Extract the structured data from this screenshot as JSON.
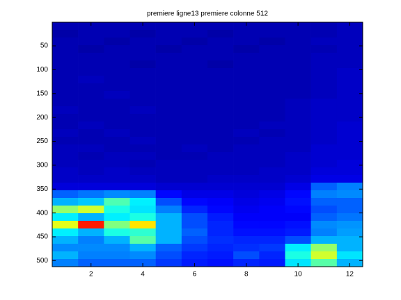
{
  "chart_data": {
    "type": "heatmap",
    "title": "premiere ligne13 premiere colonne 512",
    "colormap": "jet",
    "clim": [
      0,
      1
    ],
    "x": [
      1,
      2,
      3,
      4,
      5,
      6,
      7,
      8,
      9,
      10,
      11,
      12
    ],
    "ybins": [
      0.5,
      16.5,
      32.5,
      48.5,
      64.5,
      80.5,
      96.5,
      112.5,
      128.5,
      144.5,
      160.5,
      176.5,
      192.5,
      208.5,
      224.5,
      240.5,
      256.5,
      272.5,
      288.5,
      304.5,
      320.5,
      336.5,
      352.5,
      368.5,
      384.5,
      400.5,
      416.5,
      432.5,
      448.5,
      464.5,
      480.5,
      496.5,
      512.5
    ],
    "z": [
      [
        0.05,
        0.05,
        0.05,
        0.05,
        0.05,
        0.05,
        0.05,
        0.05,
        0.05,
        0.05,
        0.05,
        0.06
      ],
      [
        0.04,
        0.05,
        0.05,
        0.04,
        0.05,
        0.05,
        0.04,
        0.05,
        0.05,
        0.05,
        0.05,
        0.06
      ],
      [
        0.05,
        0.05,
        0.04,
        0.05,
        0.05,
        0.04,
        0.05,
        0.05,
        0.04,
        0.05,
        0.06,
        0.06
      ],
      [
        0.05,
        0.04,
        0.05,
        0.05,
        0.04,
        0.05,
        0.05,
        0.04,
        0.05,
        0.05,
        0.05,
        0.06
      ],
      [
        0.05,
        0.05,
        0.05,
        0.05,
        0.05,
        0.05,
        0.05,
        0.05,
        0.05,
        0.05,
        0.06,
        0.06
      ],
      [
        0.05,
        0.05,
        0.05,
        0.04,
        0.05,
        0.05,
        0.04,
        0.05,
        0.05,
        0.05,
        0.06,
        0.06
      ],
      [
        0.05,
        0.05,
        0.05,
        0.05,
        0.05,
        0.05,
        0.05,
        0.05,
        0.05,
        0.05,
        0.06,
        0.07
      ],
      [
        0.05,
        0.06,
        0.05,
        0.05,
        0.05,
        0.05,
        0.05,
        0.05,
        0.05,
        0.05,
        0.06,
        0.07
      ],
      [
        0.05,
        0.05,
        0.05,
        0.05,
        0.05,
        0.05,
        0.05,
        0.05,
        0.05,
        0.05,
        0.06,
        0.07
      ],
      [
        0.05,
        0.05,
        0.06,
        0.05,
        0.05,
        0.05,
        0.05,
        0.05,
        0.05,
        0.05,
        0.06,
        0.07
      ],
      [
        0.05,
        0.05,
        0.05,
        0.05,
        0.05,
        0.05,
        0.05,
        0.05,
        0.05,
        0.06,
        0.07,
        0.07
      ],
      [
        0.06,
        0.05,
        0.05,
        0.06,
        0.05,
        0.05,
        0.05,
        0.05,
        0.05,
        0.06,
        0.07,
        0.07
      ],
      [
        0.05,
        0.05,
        0.05,
        0.05,
        0.05,
        0.05,
        0.05,
        0.05,
        0.05,
        0.06,
        0.07,
        0.07
      ],
      [
        0.05,
        0.06,
        0.05,
        0.05,
        0.05,
        0.05,
        0.05,
        0.05,
        0.06,
        0.06,
        0.07,
        0.08
      ],
      [
        0.06,
        0.05,
        0.06,
        0.05,
        0.05,
        0.05,
        0.05,
        0.06,
        0.05,
        0.06,
        0.07,
        0.08
      ],
      [
        0.05,
        0.05,
        0.05,
        0.06,
        0.05,
        0.05,
        0.05,
        0.05,
        0.06,
        0.06,
        0.07,
        0.08
      ],
      [
        0.06,
        0.06,
        0.05,
        0.05,
        0.05,
        0.06,
        0.05,
        0.06,
        0.06,
        0.06,
        0.08,
        0.08
      ],
      [
        0.06,
        0.05,
        0.06,
        0.06,
        0.05,
        0.05,
        0.06,
        0.06,
        0.06,
        0.07,
        0.08,
        0.08
      ],
      [
        0.06,
        0.06,
        0.06,
        0.05,
        0.06,
        0.06,
        0.06,
        0.06,
        0.06,
        0.07,
        0.08,
        0.09
      ],
      [
        0.07,
        0.06,
        0.07,
        0.06,
        0.06,
        0.06,
        0.06,
        0.06,
        0.07,
        0.07,
        0.09,
        0.09
      ],
      [
        0.07,
        0.07,
        0.07,
        0.07,
        0.06,
        0.06,
        0.07,
        0.07,
        0.07,
        0.08,
        0.1,
        0.1
      ],
      [
        0.09,
        0.09,
        0.09,
        0.09,
        0.08,
        0.08,
        0.08,
        0.08,
        0.08,
        0.1,
        0.22,
        0.25
      ],
      [
        0.22,
        0.24,
        0.26,
        0.25,
        0.13,
        0.1,
        0.1,
        0.09,
        0.1,
        0.13,
        0.25,
        0.26
      ],
      [
        0.3,
        0.32,
        0.45,
        0.36,
        0.2,
        0.13,
        0.12,
        0.1,
        0.11,
        0.14,
        0.22,
        0.22
      ],
      [
        0.52,
        0.58,
        0.4,
        0.35,
        0.25,
        0.16,
        0.13,
        0.11,
        0.12,
        0.13,
        0.2,
        0.22
      ],
      [
        0.36,
        0.3,
        0.36,
        0.4,
        0.3,
        0.2,
        0.15,
        0.12,
        0.12,
        0.12,
        0.22,
        0.24
      ],
      [
        0.6,
        0.85,
        0.5,
        0.65,
        0.3,
        0.2,
        0.16,
        0.13,
        0.13,
        0.14,
        0.26,
        0.27
      ],
      [
        0.36,
        0.3,
        0.4,
        0.42,
        0.3,
        0.22,
        0.16,
        0.14,
        0.14,
        0.15,
        0.25,
        0.28
      ],
      [
        0.3,
        0.25,
        0.3,
        0.46,
        0.3,
        0.2,
        0.17,
        0.16,
        0.16,
        0.2,
        0.3,
        0.3
      ],
      [
        0.26,
        0.26,
        0.26,
        0.3,
        0.22,
        0.18,
        0.16,
        0.17,
        0.18,
        0.36,
        0.52,
        0.3
      ],
      [
        0.3,
        0.25,
        0.25,
        0.26,
        0.2,
        0.16,
        0.15,
        0.2,
        0.16,
        0.4,
        0.58,
        0.35
      ],
      [
        0.25,
        0.22,
        0.22,
        0.22,
        0.18,
        0.15,
        0.14,
        0.16,
        0.15,
        0.35,
        0.46,
        0.3
      ]
    ],
    "xlim": [
      0.5,
      12.5
    ],
    "xticks": [
      2,
      4,
      6,
      8,
      10,
      12
    ],
    "ylim": [
      0.5,
      512.5
    ],
    "yticks": [
      50,
      100,
      150,
      200,
      250,
      300,
      350,
      400,
      450,
      500
    ],
    "yreverse": true
  }
}
